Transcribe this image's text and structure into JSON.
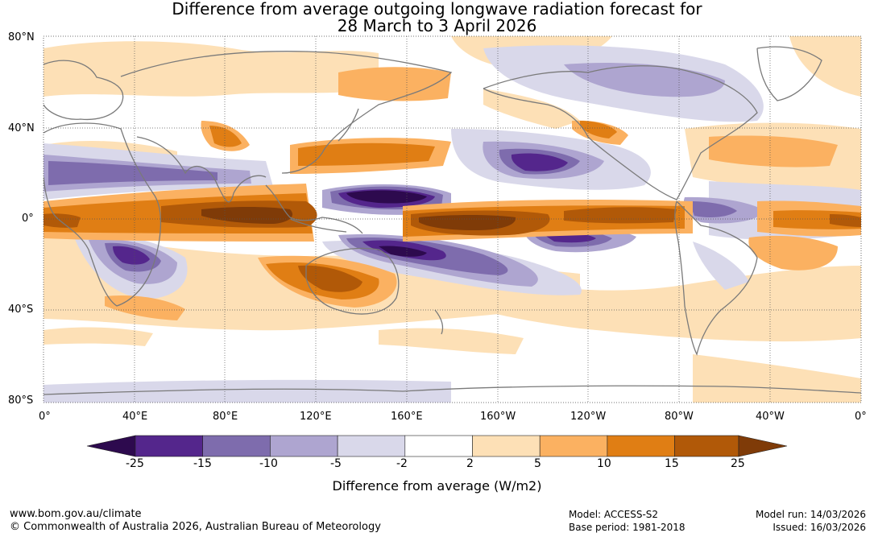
{
  "title": {
    "line1": "Difference from average outgoing longwave radiation forecast for",
    "line2": "28 March to 3 April 2026"
  },
  "map": {
    "lat_labels": [
      "80°N",
      "40°N",
      "0°",
      "40°S",
      "80°S"
    ],
    "lon_labels": [
      "0°",
      "40°E",
      "80°E",
      "120°E",
      "160°E",
      "160°W",
      "120°W",
      "80°W",
      "40°W",
      "0°"
    ]
  },
  "colorbar": {
    "title": "Difference from average (W/m2)",
    "ticks": [
      "-25",
      "-15",
      "-10",
      "-5",
      "-2",
      "2",
      "5",
      "10",
      "15",
      "25"
    ],
    "colors": [
      "#2d0a4e",
      "#54268c",
      "#7e6cad",
      "#aea5d0",
      "#d9d8ea",
      "#ffffff",
      "#fde0b6",
      "#fbb161",
      "#e07e14",
      "#b15908",
      "#7f3b08"
    ]
  },
  "footer": {
    "url": "www.bom.gov.au/climate",
    "copyright": "© Commonwealth of Australia 2026, Australian Bureau of Meteorology",
    "model": "Model: ACCESS-S2",
    "base_period": "Base period: 1981-2018",
    "model_run": "Model run: 14/03/2026",
    "issued": "Issued: 16/03/2026"
  }
}
